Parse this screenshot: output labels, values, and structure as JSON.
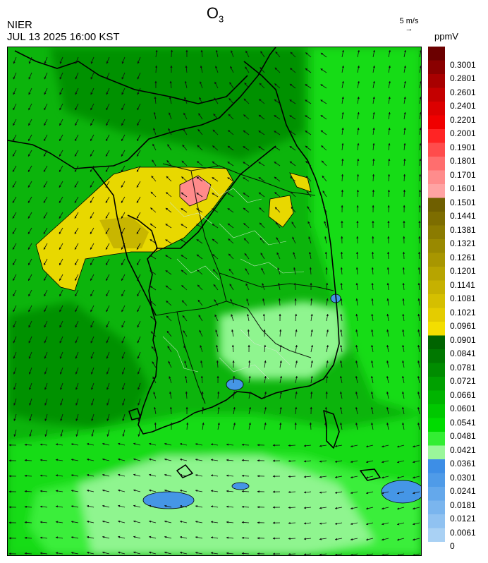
{
  "header": {
    "agency": "NIER",
    "datetime": "JUL 13 2025 16:00 KST",
    "pollutant_main": "O",
    "pollutant_sub": "3"
  },
  "wind_reference": {
    "label": "5 m/s",
    "arrow": "→"
  },
  "legend": {
    "unit": "ppmV",
    "labels": [
      "0.3001",
      "0.2801",
      "0.2601",
      "0.2401",
      "0.2201",
      "0.2001",
      "0.1901",
      "0.1801",
      "0.1701",
      "0.1601",
      "0.1501",
      "0.1441",
      "0.1381",
      "0.1321",
      "0.1261",
      "0.1201",
      "0.1141",
      "0.1081",
      "0.1021",
      "0.0961",
      "0.0901",
      "0.0841",
      "0.0781",
      "0.0721",
      "0.0661",
      "0.0601",
      "0.0541",
      "0.0481",
      "0.0421",
      "0.0361",
      "0.0301",
      "0.0241",
      "0.0181",
      "0.0121",
      "0.0061",
      "0"
    ],
    "colors": [
      "#6b0000",
      "#8a0000",
      "#a80000",
      "#c40000",
      "#dc0000",
      "#f00000",
      "#ff2424",
      "#ff4c4c",
      "#ff6e6e",
      "#ff8c8c",
      "#ffa3a3",
      "#6f5f00",
      "#7d6d00",
      "#8b7b00",
      "#998900",
      "#a89600",
      "#b7a400",
      "#c6b100",
      "#d5bf00",
      "#e4cc00",
      "#f3de00",
      "#006400",
      "#007800",
      "#008c00",
      "#00a000",
      "#00b400",
      "#00c800",
      "#00dc00",
      "#33ee33",
      "#9af79a",
      "#3d8ee6",
      "#4f9be8",
      "#64a8eb",
      "#7ab5ee",
      "#90c2f1",
      "#a9d1f4"
    ]
  },
  "map": {
    "field_colors": {
      "green_dark": "#049104",
      "green_mid": "#0cb40c",
      "green_bright": "#13dc13",
      "green_light": "#3aee3a",
      "green_pale": "#8ff58f",
      "yellow": "#e8d800",
      "yellow_dark": "#c8b600",
      "pink": "#ff8b8b",
      "blue": "#4596e6"
    }
  }
}
